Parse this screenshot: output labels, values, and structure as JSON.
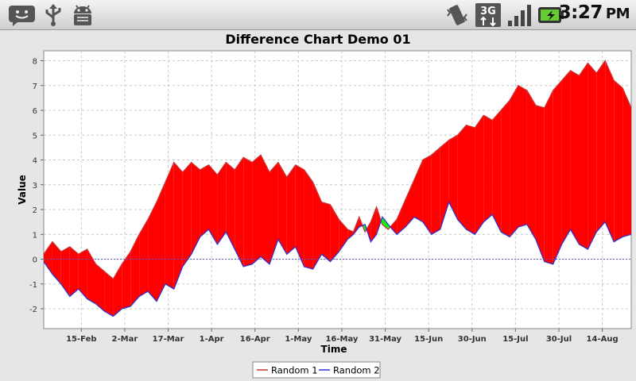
{
  "status_bar": {
    "time": "3:27",
    "time_suffix": "PM",
    "icons": [
      "notification-messages-icon",
      "usb-icon",
      "android-debug-icon",
      "vibrate-icon",
      "3g-data-icon",
      "signal-strength-icon",
      "battery-charging-icon"
    ],
    "network_label": "3G"
  },
  "chart_data": {
    "type": "area",
    "title": "Difference Chart Demo 01",
    "xlabel": "Time",
    "ylabel": "Value",
    "ylim": [
      -2.8,
      8.4
    ],
    "y_ticks": [
      -2,
      -1,
      0,
      1,
      2,
      3,
      4,
      5,
      6,
      7,
      8
    ],
    "x_range": [
      "2007-02-02",
      "2007-08-24"
    ],
    "x_ticks": [
      {
        "date": "2007-02-15",
        "label": "15-Feb"
      },
      {
        "date": "2007-03-02",
        "label": "2-Mar"
      },
      {
        "date": "2007-03-17",
        "label": "17-Mar"
      },
      {
        "date": "2007-04-01",
        "label": "1-Apr"
      },
      {
        "date": "2007-04-16",
        "label": "16-Apr"
      },
      {
        "date": "2007-05-01",
        "label": "1-May"
      },
      {
        "date": "2007-05-16",
        "label": "16-May"
      },
      {
        "date": "2007-05-31",
        "label": "31-May"
      },
      {
        "date": "2007-06-15",
        "label": "15-Jun"
      },
      {
        "date": "2007-06-30",
        "label": "30-Jun"
      },
      {
        "date": "2007-07-15",
        "label": "15-Jul"
      },
      {
        "date": "2007-07-30",
        "label": "30-Jul"
      },
      {
        "date": "2007-08-14",
        "label": "14-Aug"
      }
    ],
    "grid": true,
    "legend_position": "bottom",
    "positive_fill": "#00ff00",
    "negative_fill": "#ff0000",
    "series": [
      {
        "name": "Random 1",
        "color": "#cc3333",
        "points": [
          [
            "2007-02-02",
            0.2
          ],
          [
            "2007-02-05",
            0.7
          ],
          [
            "2007-02-08",
            0.3
          ],
          [
            "2007-02-11",
            0.5
          ],
          [
            "2007-02-14",
            0.2
          ],
          [
            "2007-02-17",
            0.4
          ],
          [
            "2007-02-20",
            -0.2
          ],
          [
            "2007-02-23",
            -0.5
          ],
          [
            "2007-02-26",
            -0.8
          ],
          [
            "2007-03-01",
            -0.2
          ],
          [
            "2007-03-04",
            0.3
          ],
          [
            "2007-03-07",
            1.0
          ],
          [
            "2007-03-10",
            1.6
          ],
          [
            "2007-03-13",
            2.3
          ],
          [
            "2007-03-16",
            3.1
          ],
          [
            "2007-03-19",
            3.9
          ],
          [
            "2007-03-22",
            3.5
          ],
          [
            "2007-03-25",
            3.9
          ],
          [
            "2007-03-28",
            3.6
          ],
          [
            "2007-03-31",
            3.8
          ],
          [
            "2007-04-03",
            3.4
          ],
          [
            "2007-04-06",
            3.9
          ],
          [
            "2007-04-09",
            3.6
          ],
          [
            "2007-04-12",
            4.1
          ],
          [
            "2007-04-15",
            3.9
          ],
          [
            "2007-04-18",
            4.2
          ],
          [
            "2007-04-21",
            3.5
          ],
          [
            "2007-04-24",
            3.9
          ],
          [
            "2007-04-27",
            3.3
          ],
          [
            "2007-04-30",
            3.8
          ],
          [
            "2007-05-03",
            3.6
          ],
          [
            "2007-05-06",
            3.1
          ],
          [
            "2007-05-09",
            2.3
          ],
          [
            "2007-05-12",
            2.2
          ],
          [
            "2007-05-15",
            1.6
          ],
          [
            "2007-05-18",
            1.2
          ],
          [
            "2007-05-20",
            1.1
          ],
          [
            "2007-05-22",
            1.7
          ],
          [
            "2007-05-24",
            1.1
          ],
          [
            "2007-05-26",
            1.5
          ],
          [
            "2007-05-28",
            2.1
          ],
          [
            "2007-05-30",
            1.4
          ],
          [
            "2007-06-01",
            1.2
          ],
          [
            "2007-06-04",
            1.6
          ],
          [
            "2007-06-07",
            2.4
          ],
          [
            "2007-06-10",
            3.2
          ],
          [
            "2007-06-13",
            4.0
          ],
          [
            "2007-06-16",
            4.2
          ],
          [
            "2007-06-19",
            4.5
          ],
          [
            "2007-06-22",
            4.8
          ],
          [
            "2007-06-25",
            5.0
          ],
          [
            "2007-06-28",
            5.4
          ],
          [
            "2007-07-01",
            5.3
          ],
          [
            "2007-07-04",
            5.8
          ],
          [
            "2007-07-07",
            5.6
          ],
          [
            "2007-07-10",
            6.0
          ],
          [
            "2007-07-13",
            6.4
          ],
          [
            "2007-07-16",
            7.0
          ],
          [
            "2007-07-19",
            6.8
          ],
          [
            "2007-07-22",
            6.2
          ],
          [
            "2007-07-25",
            6.1
          ],
          [
            "2007-07-28",
            6.8
          ],
          [
            "2007-07-31",
            7.2
          ],
          [
            "2007-08-03",
            7.6
          ],
          [
            "2007-08-06",
            7.4
          ],
          [
            "2007-08-09",
            7.9
          ],
          [
            "2007-08-12",
            7.5
          ],
          [
            "2007-08-15",
            8.0
          ],
          [
            "2007-08-18",
            7.2
          ],
          [
            "2007-08-21",
            6.9
          ],
          [
            "2007-08-24",
            6.1
          ]
        ]
      },
      {
        "name": "Random 2",
        "color": "#3333cc",
        "points": [
          [
            "2007-02-02",
            -0.1
          ],
          [
            "2007-02-05",
            -0.6
          ],
          [
            "2007-02-08",
            -1.0
          ],
          [
            "2007-02-11",
            -1.5
          ],
          [
            "2007-02-14",
            -1.2
          ],
          [
            "2007-02-17",
            -1.6
          ],
          [
            "2007-02-20",
            -1.8
          ],
          [
            "2007-02-23",
            -2.1
          ],
          [
            "2007-02-26",
            -2.3
          ],
          [
            "2007-03-01",
            -2.0
          ],
          [
            "2007-03-04",
            -1.9
          ],
          [
            "2007-03-07",
            -1.5
          ],
          [
            "2007-03-10",
            -1.3
          ],
          [
            "2007-03-13",
            -1.7
          ],
          [
            "2007-03-16",
            -1.0
          ],
          [
            "2007-03-19",
            -1.2
          ],
          [
            "2007-03-22",
            -0.3
          ],
          [
            "2007-03-25",
            0.2
          ],
          [
            "2007-03-28",
            0.9
          ],
          [
            "2007-03-31",
            1.2
          ],
          [
            "2007-04-03",
            0.6
          ],
          [
            "2007-04-06",
            1.1
          ],
          [
            "2007-04-09",
            0.4
          ],
          [
            "2007-04-12",
            -0.3
          ],
          [
            "2007-04-15",
            -0.2
          ],
          [
            "2007-04-18",
            0.1
          ],
          [
            "2007-04-21",
            -0.2
          ],
          [
            "2007-04-24",
            0.8
          ],
          [
            "2007-04-27",
            0.2
          ],
          [
            "2007-04-30",
            0.5
          ],
          [
            "2007-05-03",
            -0.3
          ],
          [
            "2007-05-06",
            -0.4
          ],
          [
            "2007-05-09",
            0.2
          ],
          [
            "2007-05-12",
            -0.1
          ],
          [
            "2007-05-15",
            0.3
          ],
          [
            "2007-05-18",
            0.8
          ],
          [
            "2007-05-20",
            1.0
          ],
          [
            "2007-05-22",
            1.3
          ],
          [
            "2007-05-24",
            1.4
          ],
          [
            "2007-05-26",
            0.7
          ],
          [
            "2007-05-28",
            1.0
          ],
          [
            "2007-05-30",
            1.7
          ],
          [
            "2007-06-01",
            1.4
          ],
          [
            "2007-06-04",
            1.0
          ],
          [
            "2007-06-07",
            1.3
          ],
          [
            "2007-06-10",
            1.7
          ],
          [
            "2007-06-13",
            1.5
          ],
          [
            "2007-06-16",
            1.0
          ],
          [
            "2007-06-19",
            1.2
          ],
          [
            "2007-06-22",
            2.3
          ],
          [
            "2007-06-25",
            1.6
          ],
          [
            "2007-06-28",
            1.2
          ],
          [
            "2007-07-01",
            1.0
          ],
          [
            "2007-07-04",
            1.5
          ],
          [
            "2007-07-07",
            1.8
          ],
          [
            "2007-07-10",
            1.1
          ],
          [
            "2007-07-13",
            0.9
          ],
          [
            "2007-07-16",
            1.3
          ],
          [
            "2007-07-19",
            1.4
          ],
          [
            "2007-07-22",
            0.8
          ],
          [
            "2007-07-25",
            -0.1
          ],
          [
            "2007-07-28",
            -0.2
          ],
          [
            "2007-07-31",
            0.6
          ],
          [
            "2007-08-03",
            1.2
          ],
          [
            "2007-08-06",
            0.6
          ],
          [
            "2007-08-09",
            0.4
          ],
          [
            "2007-08-12",
            1.1
          ],
          [
            "2007-08-15",
            1.5
          ],
          [
            "2007-08-18",
            0.7
          ],
          [
            "2007-08-21",
            0.9
          ],
          [
            "2007-08-24",
            1.0
          ]
        ]
      }
    ]
  }
}
